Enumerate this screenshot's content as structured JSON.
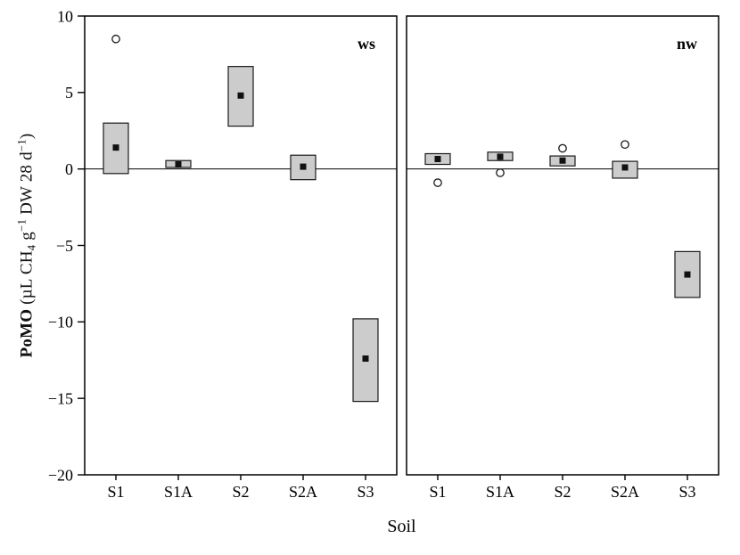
{
  "chart_data": {
    "type": "box",
    "title": "",
    "xlabel": "Soil",
    "ylabel_text": "PoMO (µL CH4 g−1 DW 28 d−1)",
    "ylabel_segments": [
      {
        "t": "PoMO",
        "s": "bold"
      },
      {
        "t": " (µL CH",
        "s": "n"
      },
      {
        "t": "4",
        "s": "sub"
      },
      {
        "t": " g",
        "s": "n"
      },
      {
        "t": "−1",
        "s": "sup"
      },
      {
        "t": " DW 28 d",
        "s": "n"
      },
      {
        "t": "−1",
        "s": "sup"
      },
      {
        "t": ")",
        "s": "n"
      }
    ],
    "ylim": [
      -20,
      10
    ],
    "yticks": [
      10,
      5,
      0,
      -5,
      -10,
      -15,
      -20
    ],
    "reference_line_y": 0,
    "categories": [
      "S1",
      "S1A",
      "S2",
      "S2A",
      "S3"
    ],
    "panels": [
      {
        "label": "ws",
        "boxes": [
          {
            "category": "S1",
            "low": -0.3,
            "high": 3.0,
            "mean": 1.4,
            "outliers": [
              8.5
            ]
          },
          {
            "category": "S1A",
            "low": 0.1,
            "high": 0.55,
            "mean": 0.3,
            "outliers": []
          },
          {
            "category": "S2",
            "low": 2.8,
            "high": 6.7,
            "mean": 4.8,
            "outliers": []
          },
          {
            "category": "S2A",
            "low": -0.7,
            "high": 0.9,
            "mean": 0.15,
            "outliers": []
          },
          {
            "category": "S3",
            "low": -15.2,
            "high": -9.8,
            "mean": -12.4,
            "outliers": []
          }
        ]
      },
      {
        "label": "nw",
        "boxes": [
          {
            "category": "S1",
            "low": 0.3,
            "high": 1.0,
            "mean": 0.65,
            "outliers": [
              -0.9
            ]
          },
          {
            "category": "S1A",
            "low": 0.55,
            "high": 1.1,
            "mean": 0.8,
            "outliers": [
              -0.25
            ]
          },
          {
            "category": "S2",
            "low": 0.2,
            "high": 0.85,
            "mean": 0.55,
            "outliers": [
              1.35
            ]
          },
          {
            "category": "S2A",
            "low": -0.6,
            "high": 0.5,
            "mean": 0.1,
            "outliers": [
              1.6
            ]
          },
          {
            "category": "S3",
            "low": -8.4,
            "high": -5.4,
            "mean": -6.9,
            "outliers": []
          }
        ]
      }
    ],
    "style": {
      "box_fill": "#cccccc",
      "box_stroke": "#1a1a1a",
      "mean_color": "#111111",
      "outlier_fill": "#ffffff",
      "axis_color": "#000000"
    },
    "legend": "none",
    "grid": "off"
  }
}
